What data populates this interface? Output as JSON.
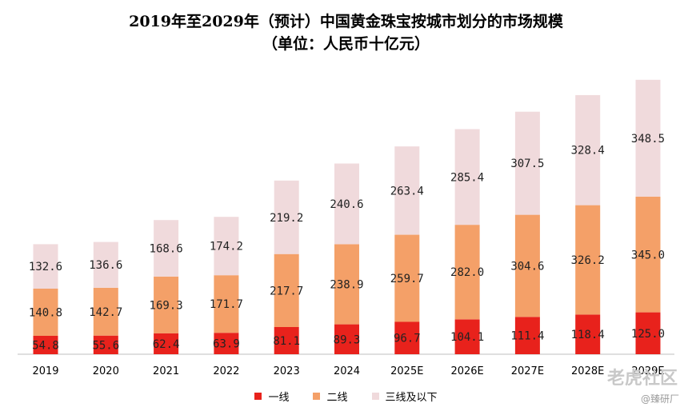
{
  "colors": {
    "tier1": "#e8221c",
    "tier2": "#f4a068",
    "tier3": "#f0dadc",
    "axis": "#bfbfbf"
  },
  "chart_data": {
    "type": "bar",
    "stacked": true,
    "title": "2019年至2029年（预计）中国黄金珠宝按城市划分的市场规模",
    "subtitle": "（单位：人民币十亿元）",
    "categories": [
      "2019",
      "2020",
      "2021",
      "2022",
      "2023",
      "2024",
      "2025E",
      "2026E",
      "2027E",
      "2028E",
      "2029E"
    ],
    "series": [
      {
        "name": "一线",
        "values": [
          54.8,
          55.6,
          62.4,
          63.9,
          81.1,
          89.3,
          96.7,
          104.1,
          111.4,
          118.4,
          125.0
        ]
      },
      {
        "name": "二线",
        "values": [
          140.8,
          142.7,
          169.3,
          171.7,
          217.7,
          238.9,
          259.7,
          282.0,
          304.6,
          326.2,
          345.0
        ]
      },
      {
        "name": "三线及以下",
        "values": [
          132.6,
          136.6,
          168.6,
          174.2,
          219.2,
          240.6,
          263.4,
          285.4,
          307.5,
          328.4,
          348.5
        ]
      }
    ],
    "xlabel": "",
    "ylabel": "",
    "ylim": [
      0,
      830
    ],
    "legend": "bottom",
    "grid": false
  },
  "watermark": {
    "brand": "老虎社区",
    "handle": "@臻研厂"
  }
}
